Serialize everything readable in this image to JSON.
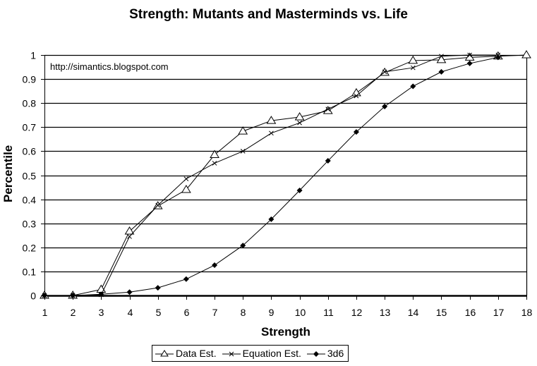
{
  "chart_data": {
    "type": "line",
    "title": "Strength: Mutants and Masterminds vs. Life",
    "annotation": "http://simantics.blogspot.com",
    "xlabel": "Strength",
    "ylabel": "Percentile",
    "x": [
      1,
      2,
      3,
      4,
      5,
      6,
      7,
      8,
      9,
      10,
      11,
      12,
      13,
      14,
      15,
      16,
      17,
      18
    ],
    "xlim": [
      1,
      18
    ],
    "ylim": [
      0,
      1
    ],
    "yticks": [
      0,
      0.1,
      0.2,
      0.3,
      0.4,
      0.5,
      0.6,
      0.7,
      0.8,
      0.9,
      1
    ],
    "ytick_labels": [
      "0",
      "0.1",
      "0.2",
      "0.3",
      "0.4",
      "0.5",
      "0.6",
      "0.7",
      "0.8",
      "0.9",
      "1"
    ],
    "xtick_labels": [
      "1",
      "2",
      "3",
      "4",
      "5",
      "6",
      "7",
      "8",
      "9",
      "10",
      "11",
      "12",
      "13",
      "14",
      "15",
      "16",
      "17",
      "18"
    ],
    "grid": "horizontal",
    "legend_position": "bottom",
    "series": [
      {
        "name": "Data Est.",
        "marker": "triangle-open",
        "values": [
          0,
          0,
          0.025,
          0.267,
          0.372,
          0.44,
          0.585,
          0.683,
          0.727,
          0.742,
          0.768,
          0.842,
          0.927,
          0.977,
          0.98,
          0.99,
          0.995,
          1.0
        ]
      },
      {
        "name": "Equation Est.",
        "marker": "x",
        "values": [
          0,
          0,
          0.003,
          0.245,
          0.375,
          0.485,
          0.55,
          0.6,
          0.675,
          0.718,
          0.775,
          0.83,
          0.93,
          0.947,
          0.995,
          1.0,
          1.0,
          null
        ]
      },
      {
        "name": "3d6",
        "marker": "diamond-filled",
        "values": [
          0,
          0,
          0.005,
          0.014,
          0.032,
          0.068,
          0.126,
          0.208,
          0.317,
          0.437,
          0.56,
          0.68,
          0.786,
          0.87,
          0.93,
          0.965,
          0.99,
          null
        ]
      }
    ]
  }
}
